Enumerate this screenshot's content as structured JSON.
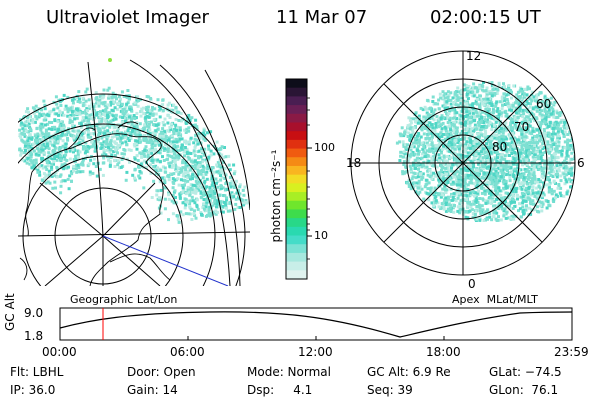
{
  "header": {
    "title": "Ultraviolet Imager",
    "date": "11 Mar 07",
    "time": "02:00:15 UT"
  },
  "geo_panel": {
    "caption": "Geographic Lat/Lon"
  },
  "polar_panel": {
    "caption": "Apex  MLat/MLT",
    "mlt_labels": [
      "12",
      "18",
      "6",
      "0"
    ],
    "lat_labels": [
      "60",
      "70",
      "80"
    ]
  },
  "colorbar": {
    "unit_label": "photon cm⁻²s⁻¹",
    "tick_labels": [
      "100",
      "10"
    ],
    "colors": [
      "#0d0d1a",
      "#2a1535",
      "#4a1e52",
      "#6a1f55",
      "#8a1a45",
      "#a8102c",
      "#c80f12",
      "#e03010",
      "#f05b10",
      "#f58a15",
      "#f9b520",
      "#f2dc25",
      "#d8f020",
      "#a8ee25",
      "#6fe62c",
      "#3edc4c",
      "#28d888",
      "#2ad9b0",
      "#44dcc8",
      "#7ae2d4",
      "#a6e8de",
      "#c8eee8",
      "#e0f3ef"
    ]
  },
  "altitude_plot": {
    "ylabel": "GC Alt",
    "ytick_top": "9.0",
    "ytick_bottom": "1.8",
    "time_ticks": [
      "00:00",
      "06:00",
      "12:00",
      "18:00",
      "23:59"
    ],
    "marker_color": "#ff0000"
  },
  "status": {
    "row1": [
      "Flt: LBHL",
      "Door: Open",
      "Mode: Normal",
      "GC Alt: 6.9 Re",
      "GLat: −74.5"
    ],
    "row2": [
      "IP: 36.0",
      "Gain: 14",
      "Dsp:     4.1",
      "Seq: 39",
      "GLon:  76.1"
    ]
  },
  "colors": {
    "aurora": "#7ee0d2",
    "aurora_dense": "#4fd6c6",
    "aurora_light": "#b9ece4",
    "speckle_green": "#8fe040",
    "blue_line": "#2233cc"
  }
}
